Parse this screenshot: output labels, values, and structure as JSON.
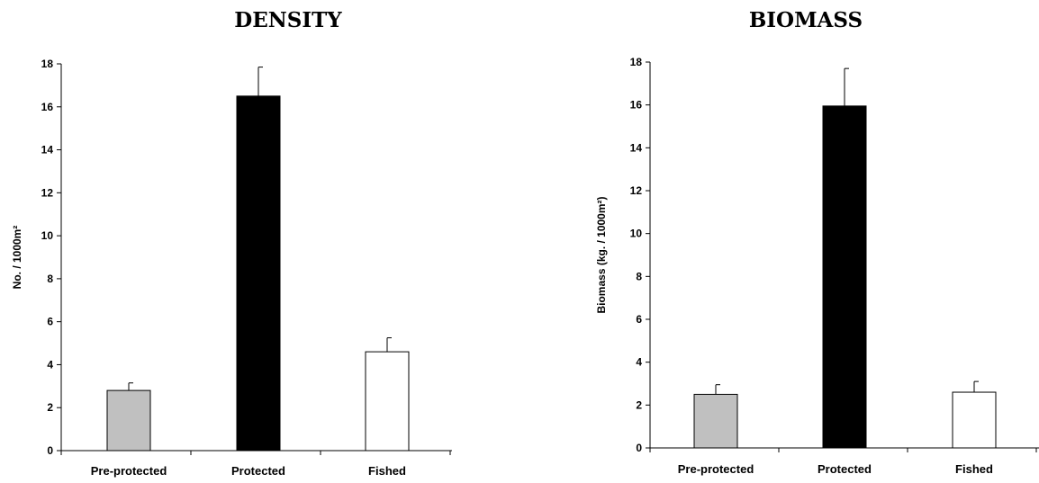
{
  "chart_data": [
    {
      "type": "bar",
      "title": "DENSITY",
      "ylabel": "No. / 1000m²",
      "xlabel": "",
      "categories": [
        "Pre-protected",
        "Protected",
        "Fished"
      ],
      "values": [
        2.8,
        16.5,
        4.6
      ],
      "errors": [
        0.35,
        1.35,
        0.65
      ],
      "colors": [
        "#c0c0c0",
        "#000000",
        "#ffffff"
      ],
      "ylim": [
        0,
        18
      ],
      "yticks": [
        "0",
        "2",
        "4",
        "6",
        "8",
        "10",
        "12",
        "14",
        "16",
        "18"
      ],
      "grid": false,
      "legend": "none"
    },
    {
      "type": "bar",
      "title": "BIOMASS",
      "ylabel": "Biomass (kg. / 1000m²)",
      "xlabel": "",
      "categories": [
        "Pre-protected",
        "Protected",
        "Fished"
      ],
      "values": [
        2.5,
        15.95,
        2.6
      ],
      "errors": [
        0.45,
        1.75,
        0.5
      ],
      "colors": [
        "#c0c0c0",
        "#000000",
        "#ffffff"
      ],
      "ylim": [
        0,
        18
      ],
      "yticks": [
        "0",
        "2",
        "4",
        "6",
        "8",
        "10",
        "12",
        "14",
        "16",
        "18"
      ],
      "grid": false,
      "legend": "none"
    }
  ]
}
